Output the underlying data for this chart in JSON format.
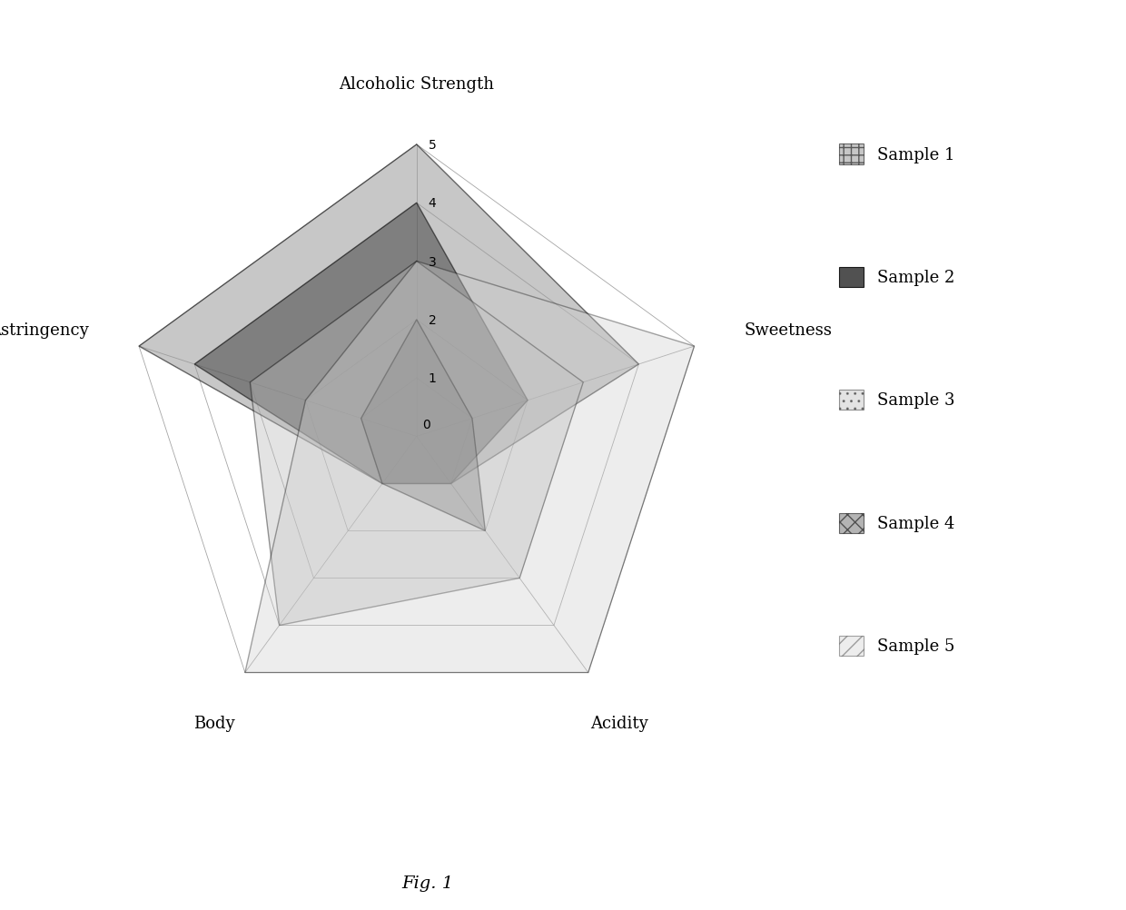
{
  "categories": [
    "Alcoholic Strength",
    "Sweetness",
    "Acidity",
    "Body",
    "Astringency"
  ],
  "samples": {
    "Sample 1": [
      5,
      4,
      1,
      1,
      5
    ],
    "Sample 2": [
      4,
      2,
      1,
      1,
      4
    ],
    "Sample 3": [
      3,
      3,
      3,
      4,
      3
    ],
    "Sample 4": [
      2,
      1,
      2,
      1,
      1
    ],
    "Sample 5": [
      3,
      5,
      5,
      5,
      2
    ]
  },
  "colors": {
    "Sample 1": "#999999",
    "Sample 2": "#444444",
    "Sample 3": "#bbbbbb",
    "Sample 4": "#777777",
    "Sample 5": "#cccccc"
  },
  "fill_alphas": {
    "Sample 1": 0.55,
    "Sample 2": 0.55,
    "Sample 3": 0.4,
    "Sample 4": 0.45,
    "Sample 5": 0.35
  },
  "ylim": [
    0,
    5
  ],
  "yticks": [
    0,
    1,
    2,
    3,
    4,
    5
  ],
  "fig_caption": "Fig. 1",
  "background_color": "#ffffff",
  "figsize": [
    12.4,
    10.03
  ],
  "legend_marker_styles": [
    "crosshatch",
    "solid",
    "dotted_crosshatch",
    "small_crosshatch",
    "light_crosshatch"
  ]
}
